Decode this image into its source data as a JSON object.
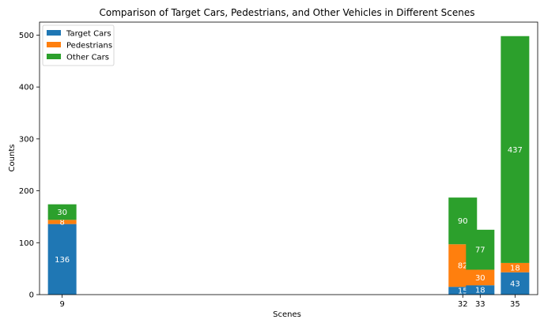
{
  "chart_data": {
    "type": "bar",
    "stacked": true,
    "title": "Comparison of Target Cars, Pedestrians, and Other Vehicles in Different Scenes",
    "xlabel": "Scenes",
    "ylabel": "Counts",
    "categories": [
      "9",
      "32",
      "33",
      "35"
    ],
    "x_values": [
      9,
      32,
      33,
      35
    ],
    "ylim": [
      0,
      525
    ],
    "yticks": [
      0,
      100,
      200,
      300,
      400,
      500
    ],
    "grid": false,
    "legend_position": "top-left",
    "series": [
      {
        "name": "Target Cars",
        "color": "#1f77b4",
        "values": [
          136,
          15,
          18,
          43
        ],
        "labels": [
          "136",
          "15",
          "18",
          "43"
        ]
      },
      {
        "name": "Pedestrians",
        "color": "#ff7f0e",
        "values": [
          8,
          82,
          30,
          18
        ],
        "labels": [
          "8",
          "82",
          "30",
          "18"
        ]
      },
      {
        "name": "Other Cars",
        "color": "#2ca02c",
        "values": [
          30,
          90,
          77,
          437
        ],
        "labels": [
          "30",
          "90",
          "77",
          "437"
        ]
      }
    ]
  }
}
